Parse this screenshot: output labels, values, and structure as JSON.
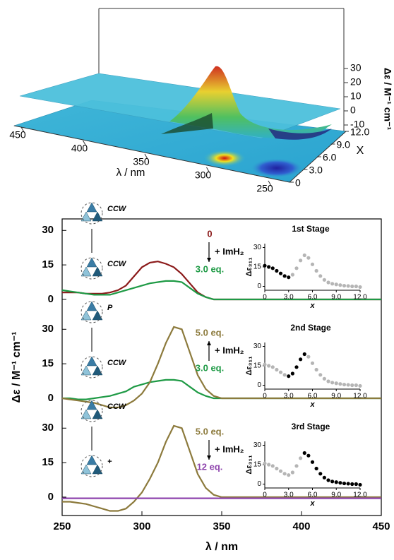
{
  "chart_data": [
    {
      "type": "surface",
      "xlabel": "λ / nm",
      "ylabel": "X",
      "zlabel": "Δε / M⁻¹ cm⁻¹",
      "xlim": [
        450,
        250
      ],
      "xticks": [
        450,
        400,
        350,
        300,
        250
      ],
      "ylim": [
        0,
        12
      ],
      "yticks": [
        0,
        {
          "value": 3,
          "label": "3.0"
        },
        {
          "value": 6,
          "label": "6.0"
        },
        {
          "value": 9,
          "label": "9.0"
        },
        {
          "value": 12,
          "label": "12.0"
        }
      ],
      "zlim": [
        -10,
        30
      ],
      "zticks": [
        -10,
        0,
        10,
        20,
        30
      ]
    },
    {
      "type": "line",
      "xlabel": "λ / nm",
      "ylabel": "Δε / M⁻¹ cm⁻¹",
      "xlim": [
        250,
        450
      ],
      "xticks": [
        250,
        300,
        350,
        400,
        450
      ],
      "x": [
        250,
        255,
        260,
        265,
        270,
        275,
        280,
        285,
        290,
        295,
        300,
        305,
        310,
        315,
        320,
        325,
        330,
        335,
        340,
        345,
        350,
        355,
        360,
        365,
        370,
        375,
        380,
        385,
        390,
        395,
        400,
        405,
        410,
        415,
        420,
        425,
        430,
        435,
        440,
        445,
        450
      ],
      "panels": [
        {
          "ylim": [
            -8,
            35
          ],
          "yticks": [
            0,
            15,
            30
          ],
          "arrow": "down",
          "annotation": "+ ImH₂",
          "scheme_labels": [
            "CCW",
            "CCW"
          ],
          "series": [
            {
              "name": "0",
              "color": "#8b1a1a",
              "values": [
                3,
                3,
                3,
                2.5,
                2.5,
                2.5,
                3,
                4,
                6,
                10,
                14,
                16,
                16.5,
                15.5,
                14,
                11,
                7,
                3,
                1,
                0,
                0,
                0,
                0,
                0,
                0,
                0,
                0,
                0,
                0,
                0,
                0,
                0,
                0,
                0,
                0,
                0,
                0,
                0,
                0,
                0,
                0
              ]
            },
            {
              "name": "3.0 eq.",
              "color": "#1e9a45",
              "values": [
                4,
                3.5,
                3,
                2.5,
                2,
                2,
                2,
                3,
                4,
                5,
                6,
                7,
                7.5,
                8,
                8,
                7.5,
                5,
                2.5,
                1,
                0,
                0,
                0,
                0,
                0,
                0,
                0,
                0,
                0,
                0,
                0,
                0,
                0,
                0,
                0,
                0,
                0,
                0,
                0,
                0,
                0,
                0
              ]
            }
          ],
          "inset": {
            "type": "scatter",
            "title": "1st Stage",
            "ylabel": "Δε₃₁₁",
            "xlabel": "x",
            "xlim": [
              0,
              12
            ],
            "xticks": [
              0,
              {
                "value": 3,
                "label": "3.0"
              },
              {
                "value": 6,
                "label": "6.0"
              },
              {
                "value": 9,
                "label": "9.0"
              },
              {
                "value": 12,
                "label": "12.0"
              }
            ],
            "ylim": [
              -3,
              33
            ],
            "yticks": [
              0,
              15,
              30
            ],
            "series": [
              {
                "color": "#000000",
                "x": [
                  0,
                  0.5,
                  1,
                  1.5,
                  2,
                  2.5,
                  3
                ],
                "values": [
                  16,
                  15,
                  14,
                  12,
                  10,
                  8,
                  7
                ]
              },
              {
                "color": "#b5b5b5",
                "x": [
                  3.5,
                  4,
                  4.5,
                  5,
                  5.5,
                  6,
                  6.5,
                  7,
                  7.5,
                  8,
                  8.5,
                  9,
                  9.5,
                  10,
                  10.5,
                  11,
                  11.5,
                  12
                ],
                "values": [
                  9,
                  14,
                  20,
                  24,
                  22,
                  17,
                  12,
                  8,
                  5,
                  3,
                  2,
                  1.5,
                  1,
                  0.5,
                  0.3,
                  0,
                  0,
                  -0.5
                ]
              }
            ]
          }
        },
        {
          "ylim": [
            -8,
            35
          ],
          "yticks": [
            0,
            15,
            30
          ],
          "arrow": "up",
          "annotation": "+ ImH₂",
          "scheme_labels": [
            "P",
            "CCW"
          ],
          "series": [
            {
              "name": "3.0 eq.",
              "color": "#1e9a45",
              "values": [
                0,
                0,
                -0.5,
                -0.5,
                0,
                0.5,
                1,
                2,
                3,
                5,
                6,
                7,
                7.5,
                8,
                8,
                7.5,
                5,
                2.5,
                1,
                0,
                0,
                0,
                0,
                0,
                0,
                0,
                0,
                0,
                0,
                0,
                0,
                0,
                0,
                0,
                0,
                0,
                0,
                0,
                0,
                0,
                0
              ]
            },
            {
              "name": "5.0 eq.",
              "color": "#8c7a3c",
              "values": [
                0,
                -0.5,
                -1,
                -1.5,
                -2,
                -3,
                -4,
                -4,
                -3,
                -1,
                2,
                7,
                15,
                24,
                31,
                30,
                20,
                10,
                4,
                1,
                0,
                0,
                0,
                0,
                0,
                0,
                0,
                0,
                0,
                0,
                0,
                0,
                0,
                0,
                0,
                0,
                0,
                0,
                0,
                0,
                0
              ]
            }
          ],
          "inset": {
            "type": "scatter",
            "title": "2nd Stage",
            "ylabel": "Δε₃₁₁",
            "xlabel": "x",
            "xlim": [
              0,
              12
            ],
            "xticks": [
              0,
              {
                "value": 3,
                "label": "3.0"
              },
              {
                "value": 6,
                "label": "6.0"
              },
              {
                "value": 9,
                "label": "9.0"
              },
              {
                "value": 12,
                "label": "12.0"
              }
            ],
            "ylim": [
              -3,
              33
            ],
            "yticks": [
              0,
              15,
              30
            ],
            "series": [
              {
                "color": "#b5b5b5",
                "x": [
                  0,
                  0.5,
                  1,
                  1.5,
                  2,
                  2.5
                ],
                "values": [
                  16,
                  15,
                  14,
                  12,
                  10,
                  8
                ]
              },
              {
                "color": "#000000",
                "x": [
                  3,
                  3.5,
                  4,
                  4.5,
                  5
                ],
                "values": [
                  7,
                  9,
                  14,
                  20,
                  24
                ]
              },
              {
                "color": "#b5b5b5",
                "x": [
                  5.5,
                  6,
                  6.5,
                  7,
                  7.5,
                  8,
                  8.5,
                  9,
                  9.5,
                  10,
                  10.5,
                  11,
                  11.5,
                  12
                ],
                "values": [
                  22,
                  17,
                  12,
                  8,
                  5,
                  3,
                  2,
                  1.5,
                  1,
                  0.5,
                  0.3,
                  0,
                  0,
                  -0.5
                ]
              }
            ]
          }
        },
        {
          "ylim": [
            -8,
            35
          ],
          "yticks": [
            0,
            15,
            30
          ],
          "arrow": "down",
          "annotation": "+ ImH₂",
          "scheme_labels": [
            "CCW",
            "+"
          ],
          "series": [
            {
              "name": "5.0 eq.",
              "color": "#8c7a3c",
              "values": [
                -2,
                -2,
                -2.5,
                -3,
                -4,
                -5,
                -6,
                -6,
                -5,
                -2,
                2,
                8,
                15,
                24,
                31,
                30,
                20,
                10,
                4,
                1,
                0,
                0,
                0,
                0,
                0,
                0,
                0,
                0,
                0,
                0,
                0,
                0,
                0,
                0,
                0,
                0,
                0,
                0,
                0,
                0,
                0
              ]
            },
            {
              "name": "12 eq.",
              "color": "#8e44ad",
              "values": [
                -0.5,
                -0.5,
                -0.5,
                -0.5,
                -0.5,
                -0.5,
                -0.5,
                -0.5,
                -0.5,
                -0.5,
                -0.5,
                -0.5,
                -0.5,
                -0.5,
                -0.5,
                -0.5,
                -0.5,
                -0.5,
                -0.5,
                -0.5,
                -0.5,
                -0.5,
                -0.5,
                -0.5,
                -0.5,
                -0.5,
                -0.5,
                -0.5,
                -0.5,
                -0.5,
                -0.5,
                -0.5,
                -0.5,
                -0.5,
                -0.5,
                -0.5,
                -0.5,
                -0.5,
                -0.5,
                -0.5,
                -0.5
              ]
            }
          ],
          "inset": {
            "type": "scatter",
            "title": "3rd Stage",
            "ylabel": "Δε₃₁₁",
            "xlabel": "x",
            "xlim": [
              0,
              12
            ],
            "xticks": [
              0,
              {
                "value": 3,
                "label": "3.0"
              },
              {
                "value": 6,
                "label": "6.0"
              },
              {
                "value": 9,
                "label": "9.0"
              },
              {
                "value": 12,
                "label": "12.0"
              }
            ],
            "ylim": [
              -3,
              33
            ],
            "yticks": [
              0,
              15,
              30
            ],
            "series": [
              {
                "color": "#b5b5b5",
                "x": [
                  0,
                  0.5,
                  1,
                  1.5,
                  2,
                  2.5,
                  3,
                  3.5,
                  4,
                  4.5
                ],
                "values": [
                  16,
                  15,
                  14,
                  12,
                  10,
                  8,
                  7,
                  9,
                  14,
                  20
                ]
              },
              {
                "color": "#000000",
                "x": [
                  5,
                  5.5,
                  6,
                  6.5,
                  7,
                  7.5,
                  8,
                  8.5,
                  9,
                  9.5,
                  10,
                  10.5,
                  11,
                  11.5,
                  12
                ],
                "values": [
                  24,
                  22,
                  17,
                  12,
                  8,
                  5,
                  3,
                  2,
                  1.5,
                  1,
                  0.5,
                  0.3,
                  0,
                  0,
                  -0.5
                ]
              }
            ]
          }
        }
      ]
    }
  ]
}
